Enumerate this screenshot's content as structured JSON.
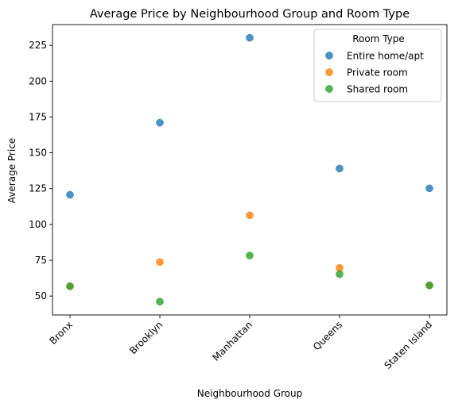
{
  "chart_data": {
    "type": "scatter",
    "title": "Average Price by Neighbourhood Group and Room Type",
    "xlabel": "Neighbourhood Group",
    "ylabel": "Average Price",
    "categories": [
      "Bronx",
      "Brooklyn",
      "Manhattan",
      "Queens",
      "Staten Island"
    ],
    "ylim": [
      36.8,
      239.5
    ],
    "yticks": [
      50,
      75,
      100,
      125,
      150,
      175,
      200,
      225
    ],
    "grid": false,
    "legend": {
      "title": "Room Type",
      "placement": "top-right"
    },
    "series": [
      {
        "name": "Entire home/apt",
        "color": "#1f77b4",
        "values": [
          120.7,
          171.0,
          230.3,
          139.0,
          125.2
        ]
      },
      {
        "name": "Private room",
        "color": "#ff7f0e",
        "values": [
          56.8,
          73.7,
          106.4,
          69.6,
          57.4
        ]
      },
      {
        "name": "Shared room",
        "color": "#2ca02c",
        "values": [
          56.9,
          46.1,
          78.3,
          65.3,
          57.5
        ]
      }
    ]
  }
}
